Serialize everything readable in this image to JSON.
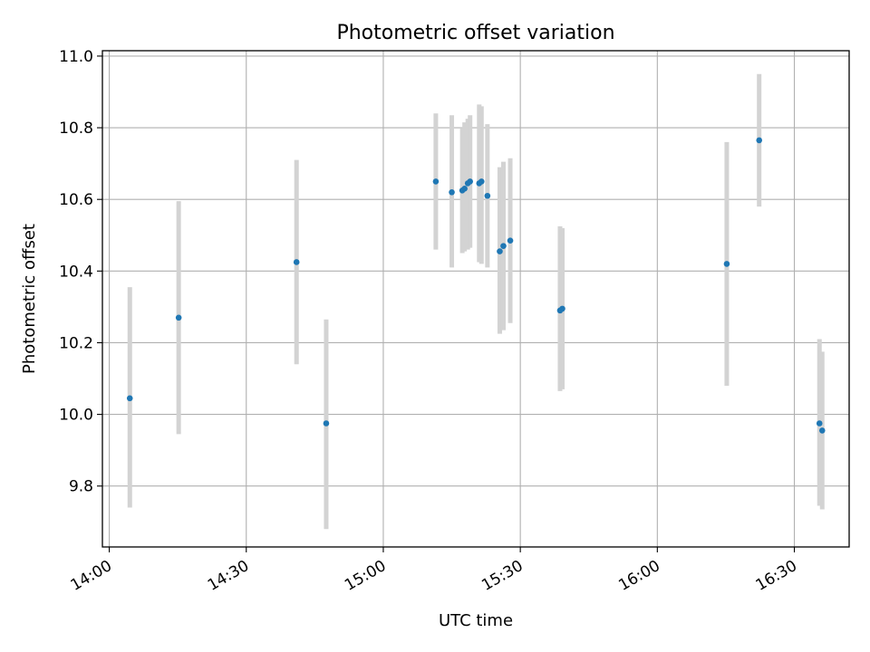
{
  "chart_data": {
    "type": "scatter",
    "title": "Photometric offset variation",
    "xlabel": "UTC time",
    "ylabel": "Photometric offset",
    "x_ticks": [
      "14:00",
      "14:30",
      "15:00",
      "15:30",
      "16:00",
      "16:30"
    ],
    "y_ticks": [
      "9.8",
      "10.0",
      "10.2",
      "10.4",
      "10.6",
      "10.8",
      "11.0"
    ],
    "xlim": [
      "13:58.5",
      "16:42.0"
    ],
    "ylim": [
      9.63,
      11.015
    ],
    "grid": true,
    "legend": "none",
    "marker_color": "#1f77b4",
    "errorbar_color": "#d3d3d3",
    "points": [
      {
        "t": "14:04.5",
        "y": 10.045,
        "lo": 9.74,
        "hi": 10.355
      },
      {
        "t": "14:15.2",
        "y": 10.27,
        "lo": 9.945,
        "hi": 10.595
      },
      {
        "t": "14:41.0",
        "y": 10.425,
        "lo": 10.14,
        "hi": 10.71
      },
      {
        "t": "14:47.5",
        "y": 9.975,
        "lo": 9.68,
        "hi": 10.265
      },
      {
        "t": "15:11.5",
        "y": 10.65,
        "lo": 10.46,
        "hi": 10.84
      },
      {
        "t": "15:15.0",
        "y": 10.62,
        "lo": 10.41,
        "hi": 10.835
      },
      {
        "t": "15:17.3",
        "y": 10.625,
        "lo": 10.45,
        "hi": 10.8
      },
      {
        "t": "15:17.8",
        "y": 10.63,
        "lo": 10.455,
        "hi": 10.815
      },
      {
        "t": "15:18.5",
        "y": 10.645,
        "lo": 10.46,
        "hi": 10.825
      },
      {
        "t": "15:19.0",
        "y": 10.65,
        "lo": 10.465,
        "hi": 10.835
      },
      {
        "t": "15:21.0",
        "y": 10.645,
        "lo": 10.425,
        "hi": 10.865
      },
      {
        "t": "15:21.5",
        "y": 10.65,
        "lo": 10.42,
        "hi": 10.86
      },
      {
        "t": "15:22.8",
        "y": 10.61,
        "lo": 10.41,
        "hi": 10.81
      },
      {
        "t": "15:25.5",
        "y": 10.455,
        "lo": 10.225,
        "hi": 10.69
      },
      {
        "t": "15:26.3",
        "y": 10.47,
        "lo": 10.235,
        "hi": 10.705
      },
      {
        "t": "15:27.8",
        "y": 10.485,
        "lo": 10.255,
        "hi": 10.715
      },
      {
        "t": "15:38.7",
        "y": 10.29,
        "lo": 10.065,
        "hi": 10.525
      },
      {
        "t": "15:39.2",
        "y": 10.295,
        "lo": 10.07,
        "hi": 10.52
      },
      {
        "t": "16:15.2",
        "y": 10.42,
        "lo": 10.08,
        "hi": 10.76
      },
      {
        "t": "16:22.3",
        "y": 10.765,
        "lo": 10.58,
        "hi": 10.95
      },
      {
        "t": "16:35.5",
        "y": 9.975,
        "lo": 9.745,
        "hi": 10.21
      },
      {
        "t": "16:36.1",
        "y": 9.955,
        "lo": 9.735,
        "hi": 10.175
      }
    ]
  }
}
